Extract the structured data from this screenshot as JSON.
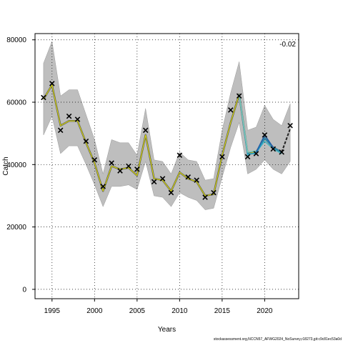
{
  "chart_data": {
    "type": "line",
    "xlabel": "Years",
    "ylabel": "Catch",
    "xlim": [
      1993,
      2024
    ],
    "ylim": [
      -3000,
      82000
    ],
    "x_ticks": [
      1995,
      2000,
      2005,
      2010,
      2015,
      2020
    ],
    "y_ticks": [
      0,
      20000,
      40000,
      60000,
      80000
    ],
    "grid": true,
    "corner_label": "-0.02",
    "observed": {
      "x": [
        1994,
        1995,
        1996,
        1997,
        1998,
        1999,
        2000,
        2001,
        2002,
        2003,
        2004,
        2005,
        2006,
        2007,
        2008,
        2009,
        2010,
        2011,
        2012,
        2013,
        2014,
        2015,
        2016,
        2017,
        2018,
        2019,
        2020,
        2021,
        2022,
        2023
      ],
      "y": [
        61500,
        66000,
        51000,
        55500,
        54500,
        47500,
        41500,
        33000,
        40500,
        38000,
        39500,
        38500,
        51000,
        34500,
        35500,
        31000,
        43000,
        36000,
        35000,
        29500,
        31000,
        42500,
        57500,
        62000,
        42500,
        43500,
        49500,
        45000,
        44000,
        52500
      ]
    },
    "fitted": {
      "x": [
        1994,
        1995,
        1996,
        1997,
        1998,
        1999,
        2000,
        2001,
        2002,
        2003,
        2004,
        2005,
        2006,
        2007,
        2008,
        2009,
        2010,
        2011,
        2012,
        2013,
        2014,
        2015,
        2016,
        2017,
        2018,
        2019,
        2020,
        2021,
        2022
      ],
      "y": [
        61000,
        65500,
        52500,
        54000,
        54000,
        47000,
        40500,
        31500,
        39500,
        38500,
        39000,
        36500,
        49500,
        35500,
        35000,
        31500,
        37500,
        35500,
        34500,
        30000,
        30500,
        43000,
        53500,
        62500,
        43500,
        44000,
        48500,
        45500,
        44000
      ]
    },
    "band": {
      "x": [
        1994,
        1995,
        1996,
        1997,
        1998,
        1999,
        2000,
        2001,
        2002,
        2003,
        2004,
        2005,
        2006,
        2007,
        2008,
        2009,
        2010,
        2011,
        2012,
        2013,
        2014,
        2015,
        2016,
        2017,
        2018,
        2019,
        2020,
        2021,
        2022,
        2023
      ],
      "lower": [
        49500,
        55500,
        43500,
        46000,
        46000,
        40000,
        33500,
        26500,
        33000,
        33000,
        33500,
        32000,
        41000,
        30000,
        29500,
        26500,
        31000,
        29500,
        28500,
        25500,
        26000,
        36000,
        45500,
        53500,
        37000,
        38500,
        41500,
        38500,
        37000,
        41000
      ],
      "upper": [
        72500,
        79500,
        62000,
        64000,
        64000,
        56000,
        48000,
        37000,
        48000,
        47000,
        47000,
        43000,
        58000,
        41500,
        41000,
        37000,
        44000,
        41500,
        41000,
        35000,
        35500,
        51000,
        63000,
        73000,
        51000,
        52000,
        59000,
        54500,
        52500,
        59500
      ]
    },
    "retro_peels": [
      {
        "color": "#41b6c4",
        "x": [
          2017,
          2018,
          2019,
          2020,
          2021,
          2022
        ],
        "y": [
          62500,
          43000,
          44000,
          47500,
          45000,
          43500
        ]
      },
      {
        "color": "#1d91c0",
        "x": [
          2017,
          2018,
          2019,
          2020,
          2021,
          2022
        ],
        "y": [
          62500,
          43500,
          43500,
          48500,
          45500,
          44000
        ]
      },
      {
        "color": "#7fcdbb",
        "x": [
          2017,
          2018,
          2019
        ],
        "y": [
          62500,
          44000,
          44500
        ]
      },
      {
        "color": "#225ea8",
        "x": [
          2019,
          2020,
          2021
        ],
        "y": [
          44000,
          49500,
          45500
        ]
      }
    ],
    "forecast": {
      "x": [
        2022,
        2023
      ],
      "y": [
        44000,
        51500
      ]
    }
  },
  "footer": "stockassessment.org,NCCN57_AFWG2024_NoSurvey,r18273,git:c9c81ec53a0d"
}
